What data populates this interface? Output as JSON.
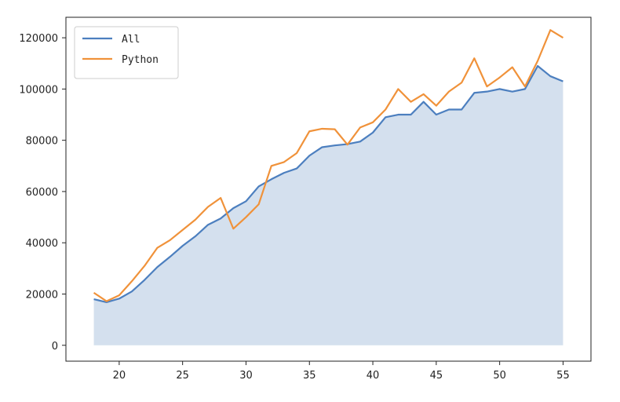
{
  "chart_data": {
    "type": "line",
    "title": "",
    "xlabel": "",
    "ylabel": "",
    "xlim": [
      15.8,
      57.2
    ],
    "ylim": [
      -6200,
      128000
    ],
    "x_ticks": [
      20,
      25,
      30,
      35,
      40,
      45,
      50,
      55
    ],
    "y_ticks": [
      0,
      20000,
      40000,
      60000,
      80000,
      100000,
      120000
    ],
    "grid": false,
    "legend_position": "top-left",
    "fill_under_series": "All",
    "fill_color": "#d4e0ee",
    "x": [
      18,
      19,
      20,
      21,
      22,
      23,
      24,
      25,
      26,
      27,
      28,
      29,
      30,
      31,
      32,
      33,
      34,
      35,
      36,
      37,
      38,
      39,
      40,
      41,
      42,
      43,
      44,
      45,
      46,
      47,
      48,
      49,
      50,
      51,
      52,
      53,
      54,
      55
    ],
    "series": [
      {
        "name": "All",
        "color": "#4c7fbf",
        "values": [
          18000,
          16800,
          18200,
          21000,
          25500,
          30500,
          34500,
          38800,
          42500,
          47000,
          49500,
          53500,
          56200,
          62000,
          64800,
          67300,
          69000,
          74000,
          77300,
          78000,
          78500,
          79500,
          83000,
          89000,
          90000,
          90000,
          95000,
          90000,
          92000,
          92000,
          98500,
          99000,
          100000,
          99000,
          100000,
          109000,
          105000,
          103000
        ]
      },
      {
        "name": "Python",
        "color": "#f0923a",
        "values": [
          20500,
          17200,
          19500,
          25000,
          31000,
          38000,
          41000,
          45000,
          49000,
          54000,
          57500,
          45500,
          50000,
          55000,
          70000,
          71500,
          75000,
          83500,
          84500,
          84300,
          78300,
          85000,
          87000,
          92000,
          100000,
          95000,
          98000,
          93500,
          99000,
          102500,
          112000,
          101000,
          104500,
          108500,
          101000,
          111000,
          123000,
          120000
        ]
      }
    ]
  }
}
